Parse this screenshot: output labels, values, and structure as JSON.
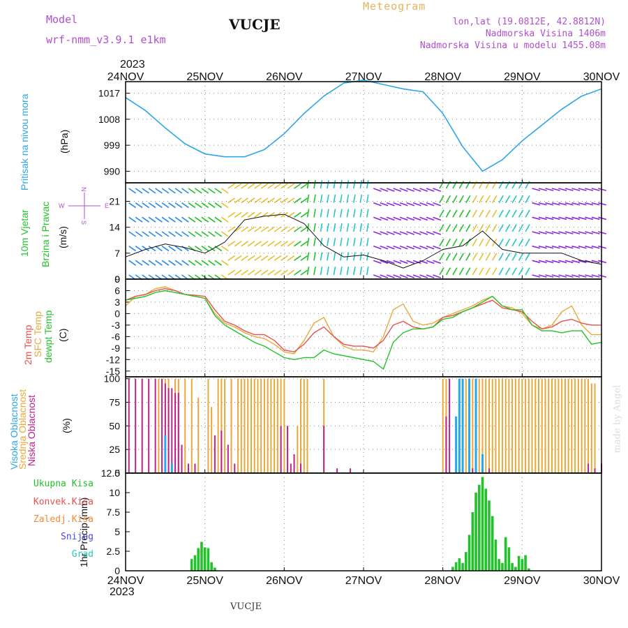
{
  "header": {
    "model_label": "Model",
    "model_name": "wrf-nmm_v3.9.1 e1km",
    "station": "VUCJE",
    "product": "Meteogram",
    "coords": "lon,lat (19.0812E, 42.8812N)",
    "elevation": "Nadmorska Visina 1406m",
    "model_elevation": "Nadmorska Visina u modelu 1455.08m",
    "footer_station": "VUCJE",
    "credit": "made by Angel"
  },
  "time_axis": {
    "year": "2023",
    "labels": [
      "24NOV",
      "25NOV",
      "26NOV",
      "27NOV",
      "28NOV",
      "29NOV",
      "30NOV"
    ]
  },
  "panels": {
    "pressure": {
      "ylabel": "Pritisak na nivou mora",
      "unit": "(hPa)",
      "ticks": [
        "990",
        "999",
        "1008",
        "1017"
      ],
      "ylim": [
        986,
        1021
      ],
      "color": "#2aa7e8"
    },
    "wind": {
      "ylabel_1": "10m Vjetar",
      "ylabel_2": "Brzina i Pravac",
      "unit": "(m/s)",
      "ticks": [
        "0",
        "7",
        "14",
        "21"
      ],
      "ylim": [
        0,
        26
      ],
      "compass": {
        "n": "N",
        "w": "W",
        "e": "E",
        "s": "S"
      }
    },
    "temperature": {
      "label_2m": "2m Temp",
      "label_sfc": "SFC Temp",
      "label_dewpt": "dewpt Temp",
      "unit": "(C)",
      "ticks": [
        "-15",
        "-12",
        "-9",
        "-6",
        "-3",
        "0",
        "3",
        "6",
        "9"
      ],
      "ylim": [
        -16.5,
        9
      ],
      "colors": {
        "t2m": "#e8504f",
        "sfc": "#e8a83a",
        "dewpt": "#22c22a"
      }
    },
    "clouds": {
      "label_high": "Visoka Oblacnost",
      "label_mid": "Srednja Oblacnost",
      "label_low": "Niska Oblacnost",
      "unit": "(%)",
      "ticks": [
        "0",
        "25",
        "50",
        "75",
        "100"
      ],
      "ylim": [
        0,
        102
      ],
      "colors": {
        "high": "#2aa7e8",
        "mid": "#e8a83a",
        "low": "#c0208a"
      }
    },
    "precip": {
      "ylabel": "1hr Precip (mm)",
      "ticks": [
        "0",
        "2.5",
        "5",
        "7.5",
        "10",
        "12.5"
      ],
      "ylim": [
        0,
        12.5
      ],
      "legend": [
        {
          "label": "Ukupna Kisa",
          "color": "#22c22a"
        },
        {
          "label": "Konvek.Kisa",
          "color": "#e8504f"
        },
        {
          "label": "Zaledj.Kisa",
          "color": "#f08a3a"
        },
        {
          "label": "Snijeg",
          "color": "#4a4ae0"
        },
        {
          "label": "Grad",
          "color": "#22c8c0"
        }
      ]
    }
  },
  "chart_data": {
    "type": "line",
    "x_unit": "hours since 24NOV 00",
    "pressure": {
      "x": [
        0,
        6,
        12,
        18,
        24,
        30,
        36,
        42,
        48,
        54,
        60,
        66,
        72,
        78,
        84,
        90,
        96,
        102,
        108,
        114,
        120,
        126,
        132,
        138,
        144
      ],
      "values": [
        1015.5,
        1011,
        1005,
        999.5,
        996,
        995,
        995,
        997.5,
        1003,
        1010,
        1016,
        1020.5,
        1021.5,
        1020,
        1018.5,
        1017.5,
        1010,
        998.5,
        990,
        994,
        1000.5,
        1006,
        1011.5,
        1016,
        1018.5
      ]
    },
    "wind_speed": {
      "x": [
        0,
        6,
        12,
        18,
        24,
        30,
        36,
        42,
        48,
        54,
        60,
        66,
        72,
        78,
        84,
        90,
        96,
        102,
        108,
        114,
        120,
        126,
        132,
        138,
        144
      ],
      "values": [
        6,
        8,
        9.5,
        8.5,
        7,
        10,
        16,
        17,
        17.5,
        15,
        9,
        6,
        6.5,
        5,
        3,
        5,
        8,
        9,
        13,
        8,
        7,
        7,
        7,
        5,
        4
      ]
    },
    "temp_2m": {
      "x": [
        0,
        3,
        6,
        9,
        12,
        15,
        18,
        21,
        24,
        27,
        30,
        33,
        36,
        39,
        42,
        45,
        48,
        51,
        54,
        57,
        60,
        63,
        66,
        69,
        72,
        75,
        78,
        81,
        84,
        87,
        90,
        93,
        96,
        99,
        102,
        105,
        108,
        111,
        114,
        117,
        120,
        123,
        126,
        129,
        132,
        135,
        138,
        141,
        144
      ],
      "values": [
        3.5,
        4.5,
        5,
        6,
        6.5,
        6,
        5,
        4.8,
        4.5,
        1,
        -2,
        -3,
        -4.5,
        -5.5,
        -5.5,
        -7,
        -9.5,
        -10,
        -8,
        -5,
        -3.5,
        -6,
        -8,
        -8.5,
        -8.5,
        -9,
        -7,
        -3,
        -2,
        -3.5,
        -4,
        -3.5,
        -1,
        -0.5,
        0.5,
        1.5,
        2.5,
        3.5,
        1.5,
        1,
        0.5,
        -2,
        -4,
        -3.5,
        -2,
        -1.5,
        -2.5,
        -3,
        -3
      ]
    },
    "temp_sfc": {
      "x": [
        0,
        3,
        6,
        9,
        12,
        15,
        18,
        21,
        24,
        27,
        30,
        33,
        36,
        39,
        42,
        45,
        48,
        51,
        54,
        57,
        60,
        63,
        66,
        69,
        72,
        75,
        78,
        81,
        84,
        87,
        90,
        93,
        96,
        99,
        102,
        105,
        108,
        111,
        114,
        117,
        120,
        123,
        126,
        129,
        132,
        135,
        138,
        141,
        144
      ],
      "values": [
        2,
        4.5,
        5,
        6.5,
        7,
        6,
        5,
        4.5,
        4,
        0,
        -2.5,
        -3.5,
        -5,
        -6,
        -6.5,
        -8,
        -10,
        -10.5,
        -7,
        -2.5,
        -1,
        -6,
        -8.5,
        -9.5,
        -9.5,
        -10,
        -6,
        1,
        2.5,
        -2,
        -3,
        -2.5,
        -1,
        0,
        1,
        2,
        3.5,
        4.5,
        2,
        1.5,
        0,
        -3,
        -4,
        -3,
        0.5,
        2,
        -3,
        -5.5,
        -5.5
      ]
    },
    "temp_dewpt": {
      "x": [
        0,
        3,
        6,
        9,
        12,
        15,
        18,
        21,
        24,
        27,
        30,
        33,
        36,
        39,
        42,
        45,
        48,
        51,
        54,
        57,
        60,
        63,
        66,
        69,
        72,
        75,
        78,
        81,
        84,
        87,
        90,
        93,
        96,
        99,
        102,
        105,
        108,
        111,
        114,
        117,
        120,
        123,
        126,
        129,
        132,
        135,
        138,
        141,
        144
      ],
      "values": [
        3.5,
        4,
        4.5,
        5.5,
        6,
        5.5,
        5,
        4.5,
        4,
        -0.5,
        -3,
        -4.5,
        -6,
        -7.5,
        -8.5,
        -10,
        -11.5,
        -12,
        -11.5,
        -11.5,
        -9.5,
        -10.5,
        -11,
        -11.5,
        -12,
        -12.5,
        -14.5,
        -7.5,
        -5,
        -4,
        -4,
        -3.5,
        -1.5,
        -1,
        0.5,
        1.5,
        3,
        4.5,
        2,
        1,
        1,
        -3,
        -4.5,
        -4.5,
        -5,
        -4.5,
        -4.5,
        -8,
        -7.5
      ]
    },
    "cloud_high": {
      "x": [
        12,
        14,
        100,
        101,
        102,
        104,
        106,
        108
      ],
      "values": [
        40,
        10,
        60,
        100,
        100,
        100,
        100,
        20
      ]
    },
    "cloud_mid": {
      "x": [
        10,
        12,
        13,
        15,
        16,
        18,
        20,
        22,
        25,
        26,
        28,
        29,
        30,
        32,
        34,
        35,
        36,
        37,
        38,
        39,
        40,
        41,
        42,
        43,
        44,
        45,
        46,
        47,
        48,
        52,
        53,
        54,
        55,
        60,
        96,
        97,
        101,
        102,
        103,
        104,
        105,
        106,
        107,
        108,
        109,
        110,
        111,
        112,
        113,
        114,
        115,
        116,
        117,
        118,
        119,
        120,
        121,
        122,
        123,
        124,
        125,
        126,
        127,
        128,
        129,
        130,
        131,
        132,
        133,
        134,
        135,
        136,
        137,
        138,
        139,
        140,
        141,
        142
      ],
      "values": [
        100,
        100,
        100,
        100,
        100,
        100,
        100,
        80,
        100,
        70,
        100,
        100,
        100,
        100,
        100,
        100,
        100,
        100,
        100,
        100,
        100,
        100,
        100,
        100,
        100,
        100,
        100,
        100,
        100,
        50,
        100,
        100,
        100,
        100,
        100,
        100,
        100,
        100,
        100,
        100,
        100,
        100,
        100,
        100,
        100,
        100,
        100,
        100,
        100,
        100,
        100,
        100,
        100,
        100,
        100,
        100,
        100,
        100,
        100,
        100,
        100,
        100,
        100,
        100,
        100,
        100,
        100,
        100,
        100,
        100,
        100,
        100,
        100,
        100,
        100,
        100,
        95,
        95
      ]
    },
    "cloud_low": {
      "x": [
        1,
        3,
        5,
        7,
        9,
        11,
        12,
        13,
        14,
        15,
        16,
        17,
        19,
        21,
        27,
        29,
        31,
        33,
        47,
        49,
        50,
        51,
        53,
        60,
        64,
        68,
        97,
        98,
        102,
        105,
        110,
        140,
        142,
        144
      ],
      "values": [
        100,
        100,
        100,
        100,
        100,
        100,
        95,
        90,
        90,
        85,
        85,
        30,
        10,
        10,
        40,
        45,
        30,
        10,
        50,
        50,
        10,
        20,
        10,
        50,
        5,
        5,
        60,
        100,
        10,
        5,
        5,
        10,
        5,
        10
      ]
    },
    "precip_total": {
      "x": [
        20,
        21,
        22,
        23,
        24,
        25,
        26,
        27,
        99,
        100,
        101,
        102,
        103,
        104,
        105,
        106,
        107,
        108,
        109,
        110,
        111,
        112,
        113,
        114,
        115,
        116,
        117,
        118,
        119,
        120,
        121,
        122
      ],
      "values": [
        1.5,
        2,
        2.9,
        3.7,
        3,
        2.9,
        1.1,
        0.4,
        0.5,
        1.1,
        1.6,
        1.0,
        2.4,
        4.6,
        7.5,
        10,
        11.0,
        12.0,
        10.5,
        9.0,
        7.0,
        4.0,
        1.5,
        1.0,
        4.3,
        3.0,
        1.0,
        0.5,
        1.9,
        1.5,
        2.0,
        0.3
      ]
    }
  }
}
